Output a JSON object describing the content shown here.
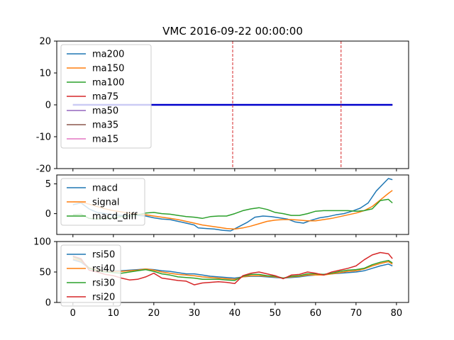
{
  "chart_data": {
    "title": "VMC 2016-09-22 00:00:00",
    "x_ticks": [
      0,
      10,
      20,
      30,
      40,
      50,
      60,
      70,
      80
    ],
    "xlim": [
      -4,
      83
    ],
    "panels": [
      {
        "type": "line",
        "ylim": [
          -20,
          20
        ],
        "y_ticks": [
          20,
          10,
          0,
          -10,
          -20
        ],
        "legend_position": "upper-left",
        "vlines": [
          39.5,
          66.3
        ],
        "vline_color": "#d62728",
        "series": [
          {
            "name": "ma200",
            "color": "#1f77b4",
            "x": [
              0,
              79
            ],
            "y": [
              0,
              0
            ]
          },
          {
            "name": "ma150",
            "color": "#ff7f0e",
            "x": [
              0,
              79
            ],
            "y": [
              0,
              0
            ]
          },
          {
            "name": "ma100",
            "color": "#2ca02c",
            "x": [
              0,
              79
            ],
            "y": [
              0,
              0
            ]
          },
          {
            "name": "ma75",
            "color": "#d62728",
            "x": [
              0,
              79
            ],
            "y": [
              0,
              0
            ]
          },
          {
            "name": "ma50",
            "color": "#9467bd",
            "x": [
              0,
              79
            ],
            "y": [
              0,
              0
            ]
          },
          {
            "name": "ma35",
            "color": "#8c564b",
            "x": [
              0,
              79
            ],
            "y": [
              0,
              0
            ]
          },
          {
            "name": "ma15",
            "color": "#e377c2",
            "x": [
              0,
              79
            ],
            "y": [
              0,
              0
            ]
          }
        ],
        "overlay_series": {
          "color": "#0000cc",
          "x": [
            0,
            79
          ],
          "y": [
            0,
            0
          ]
        }
      },
      {
        "type": "line",
        "ylim": [
          -3.5,
          6.5
        ],
        "y_ticks": [
          5,
          0
        ],
        "legend_position": "upper-left",
        "series": [
          {
            "name": "macd",
            "color": "#1f77b4",
            "x": [
              0,
              2,
              4,
              6,
              8,
              10,
              12,
              14,
              16,
              18,
              20,
              22,
              24,
              26,
              28,
              30,
              31,
              33,
              35,
              37,
              39,
              41,
              43,
              45,
              47,
              49,
              51,
              53,
              55,
              57,
              59,
              61,
              63,
              65,
              67,
              69,
              71,
              73,
              75,
              77,
              78,
              79
            ],
            "y": [
              1.5,
              1.8,
              0.8,
              0.2,
              0.0,
              -0.2,
              -0.3,
              -0.4,
              -0.3,
              -0.4,
              -0.7,
              -0.9,
              -1.0,
              -1.3,
              -1.6,
              -1.9,
              -2.4,
              -2.5,
              -2.6,
              -2.8,
              -2.9,
              -2.2,
              -1.5,
              -0.6,
              -0.4,
              -0.5,
              -0.7,
              -0.9,
              -1.4,
              -1.6,
              -1.1,
              -0.7,
              -0.5,
              -0.2,
              0.0,
              0.4,
              0.9,
              1.8,
              3.8,
              5.2,
              5.9,
              5.7
            ]
          },
          {
            "name": "signal",
            "color": "#ff7f0e",
            "x": [
              0,
              2,
              4,
              6,
              8,
              10,
              12,
              14,
              16,
              18,
              20,
              22,
              24,
              26,
              28,
              30,
              32,
              34,
              36,
              38,
              40,
              42,
              44,
              46,
              48,
              50,
              52,
              54,
              56,
              58,
              60,
              62,
              64,
              66,
              68,
              70,
              72,
              74,
              76,
              78,
              79
            ],
            "y": [
              2.0,
              1.9,
              1.6,
              1.2,
              0.8,
              0.5,
              0.3,
              0.1,
              -0.1,
              -0.2,
              -0.4,
              -0.6,
              -0.8,
              -1.0,
              -1.3,
              -1.6,
              -1.9,
              -2.1,
              -2.3,
              -2.5,
              -2.6,
              -2.4,
              -2.1,
              -1.7,
              -1.3,
              -1.1,
              -1.0,
              -1.0,
              -1.1,
              -1.2,
              -1.2,
              -1.0,
              -0.8,
              -0.5,
              -0.2,
              0.1,
              0.5,
              1.2,
              2.3,
              3.4,
              3.9
            ]
          },
          {
            "name": "macd_diff",
            "color": "#2ca02c",
            "x": [
              0,
              2,
              4,
              6,
              8,
              10,
              12,
              14,
              16,
              18,
              20,
              22,
              24,
              26,
              28,
              30,
              32,
              34,
              36,
              38,
              40,
              42,
              44,
              46,
              48,
              50,
              52,
              54,
              56,
              58,
              60,
              62,
              64,
              66,
              68,
              70,
              72,
              74,
              76,
              78,
              79
            ],
            "y": [
              -0.2,
              -0.1,
              -0.8,
              -0.9,
              -0.8,
              -0.7,
              -0.5,
              -0.4,
              -0.2,
              0.1,
              0.2,
              0.0,
              -0.1,
              -0.3,
              -0.5,
              -0.6,
              -0.8,
              -0.5,
              -0.4,
              -0.4,
              0.0,
              0.5,
              0.8,
              1.0,
              0.7,
              0.2,
              0.0,
              -0.3,
              -0.3,
              0.0,
              0.4,
              0.5,
              0.5,
              0.5,
              0.5,
              0.4,
              0.5,
              0.8,
              2.2,
              2.4,
              1.8
            ]
          }
        ]
      },
      {
        "type": "line",
        "ylim": [
          0,
          100
        ],
        "y_ticks": [
          100,
          50,
          0
        ],
        "legend_position": "upper-left",
        "series": [
          {
            "name": "rsi50",
            "color": "#1f77b4",
            "x": [
              0,
              2,
              4,
              6,
              8,
              10,
              12,
              14,
              16,
              18,
              20,
              22,
              24,
              26,
              28,
              30,
              32,
              34,
              36,
              38,
              40,
              42,
              44,
              46,
              48,
              50,
              52,
              54,
              56,
              58,
              60,
              62,
              64,
              66,
              68,
              70,
              72,
              74,
              76,
              78,
              79
            ],
            "y": [
              70,
              66,
              56,
              53,
              52,
              52,
              52,
              53,
              54,
              55,
              54,
              52,
              51,
              49,
              47,
              47,
              45,
              43,
              42,
              41,
              40,
              42,
              43,
              43,
              42,
              41,
              40,
              41,
              42,
              44,
              45,
              46,
              47,
              48,
              49,
              50,
              52,
              56,
              60,
              63,
              60
            ]
          },
          {
            "name": "rsi40",
            "color": "#ff7f0e",
            "x": [
              0,
              2,
              4,
              6,
              8,
              10,
              12,
              14,
              16,
              18,
              20,
              22,
              24,
              26,
              28,
              30,
              32,
              34,
              36,
              38,
              40,
              42,
              44,
              46,
              48,
              50,
              52,
              54,
              56,
              58,
              60,
              62,
              64,
              66,
              68,
              70,
              72,
              74,
              76,
              78,
              79
            ],
            "y": [
              72,
              68,
              57,
              53,
              51,
              51,
              51,
              52,
              53,
              55,
              53,
              50,
              48,
              46,
              45,
              44,
              42,
              41,
              40,
              39,
              38,
              42,
              44,
              44,
              43,
              42,
              40,
              42,
              43,
              45,
              45,
              45,
              47,
              49,
              51,
              52,
              55,
              60,
              64,
              67,
              63
            ]
          },
          {
            "name": "rsi30",
            "color": "#2ca02c",
            "x": [
              0,
              2,
              4,
              6,
              8,
              10,
              12,
              14,
              16,
              18,
              20,
              22,
              24,
              26,
              28,
              30,
              32,
              34,
              36,
              38,
              40,
              42,
              44,
              46,
              48,
              50,
              52,
              54,
              56,
              58,
              60,
              62,
              64,
              66,
              68,
              70,
              72,
              74,
              76,
              78,
              79
            ],
            "y": [
              75,
              70,
              56,
              52,
              50,
              49,
              48,
              50,
              52,
              54,
              51,
              47,
              45,
              42,
              41,
              40,
              38,
              38,
              38,
              37,
              36,
              43,
              46,
              46,
              44,
              43,
              40,
              43,
              44,
              47,
              47,
              46,
              48,
              51,
              53,
              54,
              56,
              62,
              66,
              69,
              65
            ]
          },
          {
            "name": "rsi20",
            "color": "#d62728",
            "x": [
              0,
              2,
              4,
              6,
              8,
              10,
              12,
              14,
              16,
              18,
              20,
              22,
              24,
              26,
              28,
              30,
              32,
              34,
              36,
              38,
              40,
              42,
              44,
              46,
              48,
              50,
              52,
              54,
              56,
              58,
              60,
              62,
              64,
              66,
              68,
              70,
              72,
              74,
              76,
              78,
              79
            ],
            "y": [
              76,
              72,
              53,
              50,
              46,
              44,
              40,
              37,
              38,
              42,
              48,
              40,
              38,
              36,
              35,
              29,
              32,
              33,
              34,
              33,
              31,
              44,
              48,
              50,
              47,
              44,
              39,
              45,
              46,
              50,
              48,
              45,
              50,
              53,
              56,
              60,
              70,
              78,
              82,
              80,
              72
            ]
          }
        ]
      }
    ]
  }
}
